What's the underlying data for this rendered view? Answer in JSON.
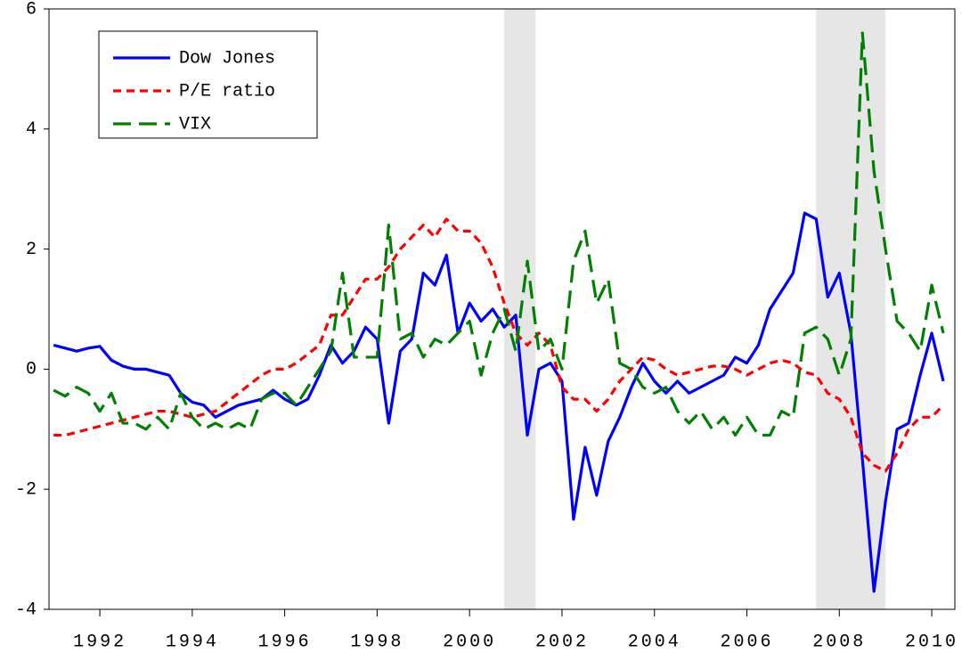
{
  "chart_data": {
    "type": "line",
    "x": [
      1991.5,
      1991.75,
      1992,
      1992.25,
      1992.5,
      1992.75,
      1993,
      1993.25,
      1993.5,
      1993.75,
      1994,
      1994.25,
      1994.5,
      1994.75,
      1995,
      1995.25,
      1995.5,
      1995.75,
      1996,
      1996.25,
      1996.5,
      1996.75,
      1997,
      1997.25,
      1997.5,
      1997.75,
      1998,
      1998.25,
      1998.5,
      1998.75,
      1999,
      1999.25,
      1999.5,
      1999.75,
      2000,
      2000.25,
      2000.5,
      2000.75,
      2001,
      2001.25,
      2001.5,
      2001.75,
      2002,
      2002.25,
      2002.5,
      2002.75,
      2003,
      2003.25,
      2003.5,
      2003.75,
      2004,
      2004.25,
      2004.5,
      2004.75,
      2005,
      2005.25,
      2005.5,
      2005.75,
      2006,
      2006.25,
      2006.5,
      2006.75,
      2007,
      2007.25,
      2007.5,
      2007.75,
      2008,
      2008.25,
      2008.5,
      2008.75,
      2009,
      2009.25,
      2009.5,
      2009.75,
      2010,
      2010.25,
      2010.5,
      2010.75
    ],
    "series": [
      {
        "name": "Dow Jones",
        "color": "#0000ff",
        "dash": "none",
        "values": [
          0.4,
          0.35,
          0.3,
          0.35,
          0.38,
          0.15,
          0.05,
          0.0,
          0.0,
          -0.05,
          -0.1,
          -0.4,
          -0.55,
          -0.6,
          -0.8,
          -0.7,
          -0.6,
          -0.55,
          -0.5,
          -0.35,
          -0.5,
          -0.6,
          -0.5,
          -0.1,
          0.4,
          0.1,
          0.3,
          0.7,
          0.5,
          -0.9,
          0.3,
          0.5,
          1.6,
          1.4,
          1.9,
          0.6,
          1.1,
          0.8,
          1.0,
          0.7,
          0.9,
          -1.1,
          0.0,
          0.1,
          -0.2,
          -2.5,
          -1.3,
          -2.1,
          -1.2,
          -0.8,
          -0.3,
          0.1,
          -0.2,
          -0.4,
          -0.2,
          -0.4,
          -0.3,
          -0.2,
          -0.1,
          0.2,
          0.1,
          0.4,
          1.0,
          1.3,
          1.6,
          2.6,
          2.5,
          1.2,
          1.6,
          0.6,
          -1.5,
          -3.7,
          -2.2,
          -1.0,
          -0.9,
          -0.1,
          0.6,
          -0.2
        ]
      },
      {
        "name": "P/E ratio",
        "color": "#ff0000",
        "dash": "9,6",
        "values": [
          -1.1,
          -1.1,
          -1.05,
          -1.0,
          -0.95,
          -0.9,
          -0.85,
          -0.8,
          -0.75,
          -0.7,
          -0.7,
          -0.75,
          -0.8,
          -0.75,
          -0.7,
          -0.55,
          -0.4,
          -0.25,
          -0.1,
          0.0,
          0.0,
          0.1,
          0.25,
          0.4,
          0.9,
          0.9,
          1.2,
          1.5,
          1.5,
          1.7,
          2.0,
          2.2,
          2.4,
          2.2,
          2.5,
          2.3,
          2.3,
          2.1,
          1.7,
          1.1,
          0.6,
          0.4,
          0.6,
          0.4,
          -0.3,
          -0.5,
          -0.5,
          -0.7,
          -0.5,
          -0.2,
          0.0,
          0.2,
          0.15,
          0.0,
          -0.1,
          -0.05,
          0.0,
          0.05,
          0.05,
          0.0,
          -0.1,
          0.0,
          0.1,
          0.15,
          0.1,
          -0.05,
          -0.1,
          -0.4,
          -0.5,
          -0.8,
          -1.4,
          -1.6,
          -1.7,
          -1.4,
          -1.0,
          -0.8,
          -0.8,
          -0.6
        ]
      },
      {
        "name": "VIX",
        "color": "#008000",
        "dash": "20,9",
        "values": [
          -0.35,
          -0.45,
          -0.3,
          -0.4,
          -0.7,
          -0.4,
          -0.9,
          -0.9,
          -1.0,
          -0.8,
          -1.0,
          -0.4,
          -0.8,
          -1.0,
          -0.9,
          -1.0,
          -0.9,
          -1.0,
          -0.5,
          -0.4,
          -0.4,
          -0.6,
          -0.3,
          0.0,
          0.3,
          1.6,
          0.2,
          0.2,
          0.2,
          2.4,
          0.5,
          0.6,
          0.2,
          0.5,
          0.4,
          0.6,
          0.8,
          -0.1,
          0.6,
          1.0,
          0.3,
          1.8,
          0.3,
          0.5,
          0.0,
          1.8,
          2.3,
          1.1,
          1.5,
          0.1,
          0.0,
          -0.3,
          -0.4,
          -0.3,
          -0.7,
          -0.9,
          -0.7,
          -1.0,
          -0.8,
          -1.1,
          -0.8,
          -1.1,
          -1.1,
          -0.7,
          -0.8,
          0.6,
          0.7,
          0.5,
          -0.1,
          0.5,
          5.6,
          3.3,
          2.0,
          0.8,
          0.6,
          0.3,
          1.4,
          0.6
        ]
      }
    ],
    "shaded_regions": [
      [
        2001.25,
        2001.93
      ],
      [
        2008.0,
        2009.5
      ]
    ],
    "shade_color": "#e6e6e6",
    "xlim": [
      1991.4,
      2011.0
    ],
    "xticks": [
      {
        "value": 1992.5,
        "label": "1992"
      },
      {
        "value": 1994.5,
        "label": "1994"
      },
      {
        "value": 1996.5,
        "label": "1996"
      },
      {
        "value": 1998.5,
        "label": "1998"
      },
      {
        "value": 2000.5,
        "label": "2000"
      },
      {
        "value": 2002.5,
        "label": "2002"
      },
      {
        "value": 2004.5,
        "label": "2004"
      },
      {
        "value": 2006.5,
        "label": "2006"
      },
      {
        "value": 2008.5,
        "label": "2008"
      },
      {
        "value": 2010.5,
        "label": "2010"
      }
    ],
    "ylim": [
      -4,
      6
    ],
    "yticks": [
      -4,
      -2,
      0,
      2,
      4,
      6
    ],
    "legend": "top-left"
  }
}
